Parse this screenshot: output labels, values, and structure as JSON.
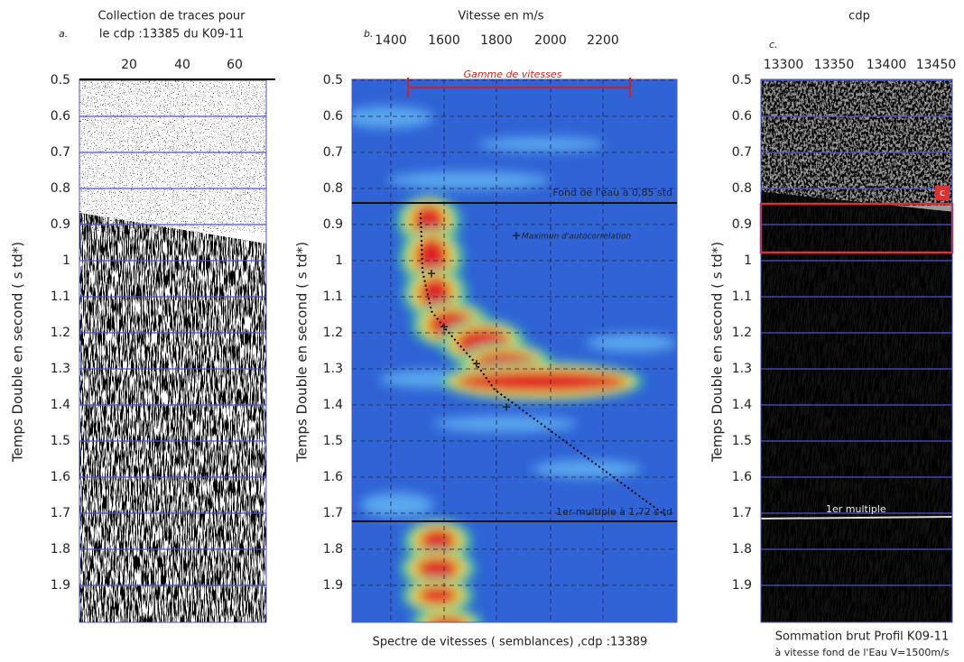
{
  "panels": [
    {
      "letter": "a.",
      "title": [
        "Collection de traces pour",
        "le cdp :13385 du K09-11"
      ],
      "x_ticks": [
        "20",
        "40",
        "60"
      ],
      "y_ticks": [
        "0.5",
        "0.6",
        "0.7",
        "0.8",
        "0.9",
        "1",
        "1.1",
        "1.2",
        "1.3",
        "1.4",
        "1.5",
        "1.6",
        "1.7",
        "1.8",
        "1.9"
      ],
      "y_label": "Temps Double en second ( s td*)"
    },
    {
      "letter": "b.",
      "title": [
        "Vitesse en m/s"
      ],
      "x_ticks": [
        "1400",
        "1600",
        "1800",
        "2000",
        "2200"
      ],
      "y_ticks": [
        "0.5",
        "0.6",
        "0.7",
        "0.8",
        "0.9",
        "1",
        "1.1",
        "1.2",
        "1.3",
        "1.4",
        "1.5",
        "1.6",
        "1.7",
        "1.8",
        "1.9"
      ],
      "y_label": "Temps Double en second ( s td*)",
      "range_label": "Gamme de vitesses",
      "water_label": "Fond de l'eau à 0,85 std",
      "multiple_label": "1er multiple à 1,72 s td",
      "max_label": "Maximun d'autocorrelation",
      "caption": [
        "Spectre de vitesses ( semblances) ,cdp :13389"
      ]
    },
    {
      "letter": "c.",
      "title": [
        "cdp"
      ],
      "x_ticks": [
        "13300",
        "13350",
        "13400",
        "13450"
      ],
      "y_ticks": [
        "0.5",
        "0.6",
        "0.7",
        "0.8",
        "0.9",
        "1",
        "1.1",
        "1.2",
        "1.3",
        "1.4",
        "1.5",
        "1.6",
        "1.7",
        "1.8",
        "1.9"
      ],
      "y_label": "Temps Double en second ( s td*)",
      "box_label": "c",
      "multiple_label": "1er multiple",
      "caption": [
        "Sommation brut Profil K09-11",
        "à vitesse fond de l'Eau V=1500m/s"
      ]
    }
  ]
}
